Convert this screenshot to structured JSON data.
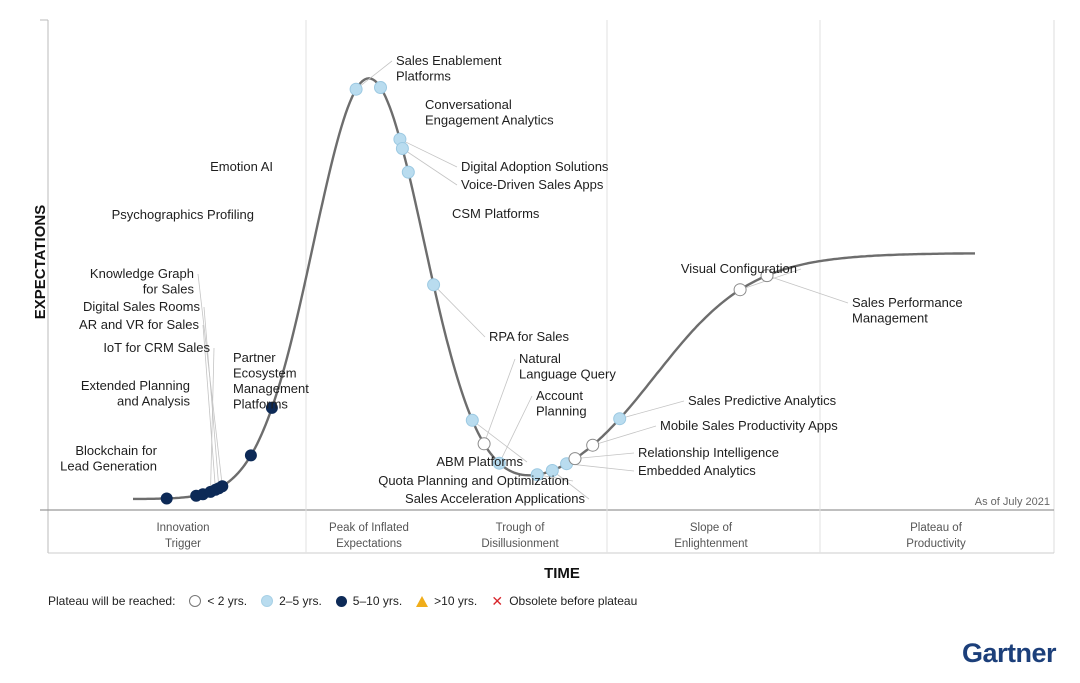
{
  "chart_data": {
    "type": "hype_cycle",
    "ylabel": "EXPECTATIONS",
    "xlabel": "TIME",
    "as_of": "As of July 2021",
    "phases": [
      "Innovation\nTrigger",
      "Peak of Inflated\nExpectations",
      "Trough of\nDisillusionment",
      "Slope of\nEnlightenment",
      "Plateau of\nProductivity"
    ],
    "legend": {
      "title": "Plateau will be reached:",
      "items": [
        {
          "key": "lt2",
          "label": "< 2 yrs."
        },
        {
          "key": "2to5",
          "label": "2–5 yrs."
        },
        {
          "key": "5to10",
          "label": "5–10 yrs."
        },
        {
          "key": "gt10",
          "label": ">10 yrs."
        },
        {
          "key": "obsolete",
          "label": "Obsolete before plateau"
        }
      ]
    },
    "technologies": [
      {
        "name": "Blockchain for\nLead Generation",
        "t": 0.04,
        "years": "5to10"
      },
      {
        "name": "Extended Planning\nand Analysis",
        "t": 0.075,
        "years": "5to10"
      },
      {
        "name": "Partner\nEcosystem\nManagement\nPlatforms",
        "t": 0.083,
        "years": "5to10"
      },
      {
        "name": "IoT for CRM Sales",
        "t": 0.092,
        "years": "5to10"
      },
      {
        "name": "AR and VR for Sales",
        "t": 0.098,
        "years": "5to10"
      },
      {
        "name": "Digital Sales Rooms",
        "t": 0.102,
        "years": "5to10"
      },
      {
        "name": "Knowledge Graph\nfor Sales",
        "t": 0.106,
        "years": "5to10"
      },
      {
        "name": "Psychographics Profiling",
        "t": 0.14,
        "years": "5to10"
      },
      {
        "name": "Emotion AI",
        "t": 0.165,
        "years": "5to10"
      },
      {
        "name": "Sales Enablement\nPlatforms",
        "t": 0.265,
        "years": "2to5"
      },
      {
        "name": "Conversational\nEngagement Analytics",
        "t": 0.294,
        "years": "2to5"
      },
      {
        "name": "Digital Adoption Solutions",
        "t": 0.317,
        "years": "2to5"
      },
      {
        "name": "Voice-Driven Sales Apps",
        "t": 0.32,
        "years": "2to5"
      },
      {
        "name": "CSM Platforms",
        "t": 0.327,
        "years": "2to5"
      },
      {
        "name": "RPA for Sales",
        "t": 0.357,
        "years": "2to5"
      },
      {
        "name": "ABM Platforms",
        "t": 0.403,
        "years": "2to5"
      },
      {
        "name": "Natural\nLanguage Query",
        "t": 0.417,
        "years": "lt2"
      },
      {
        "name": "Account\nPlanning",
        "t": 0.435,
        "years": "2to5"
      },
      {
        "name": "Quota Planning and Optimization",
        "t": 0.48,
        "years": "2to5"
      },
      {
        "name": "Sales Acceleration Applications",
        "t": 0.498,
        "years": "2to5"
      },
      {
        "name": "Embedded Analytics",
        "t": 0.515,
        "years": "2to5"
      },
      {
        "name": "Relationship Intelligence",
        "t": 0.525,
        "years": "lt2"
      },
      {
        "name": "Mobile Sales Productivity Apps",
        "t": 0.546,
        "years": "lt2"
      },
      {
        "name": "Sales Predictive Analytics",
        "t": 0.578,
        "years": "2to5"
      },
      {
        "name": "Visual Configuration",
        "t": 0.721,
        "years": "lt2"
      },
      {
        "name": "Sales Performance\nManagement",
        "t": 0.753,
        "years": "lt2"
      }
    ]
  },
  "colors": {
    "lt2": "#ffffff",
    "2to5": "#b9dcef",
    "5to10": "#0d2a57",
    "gt10": "#f0ad1a",
    "obsolete": "#d8262c",
    "curve": "#6d6d6d"
  },
  "brand": {
    "logo": "Gartner"
  }
}
